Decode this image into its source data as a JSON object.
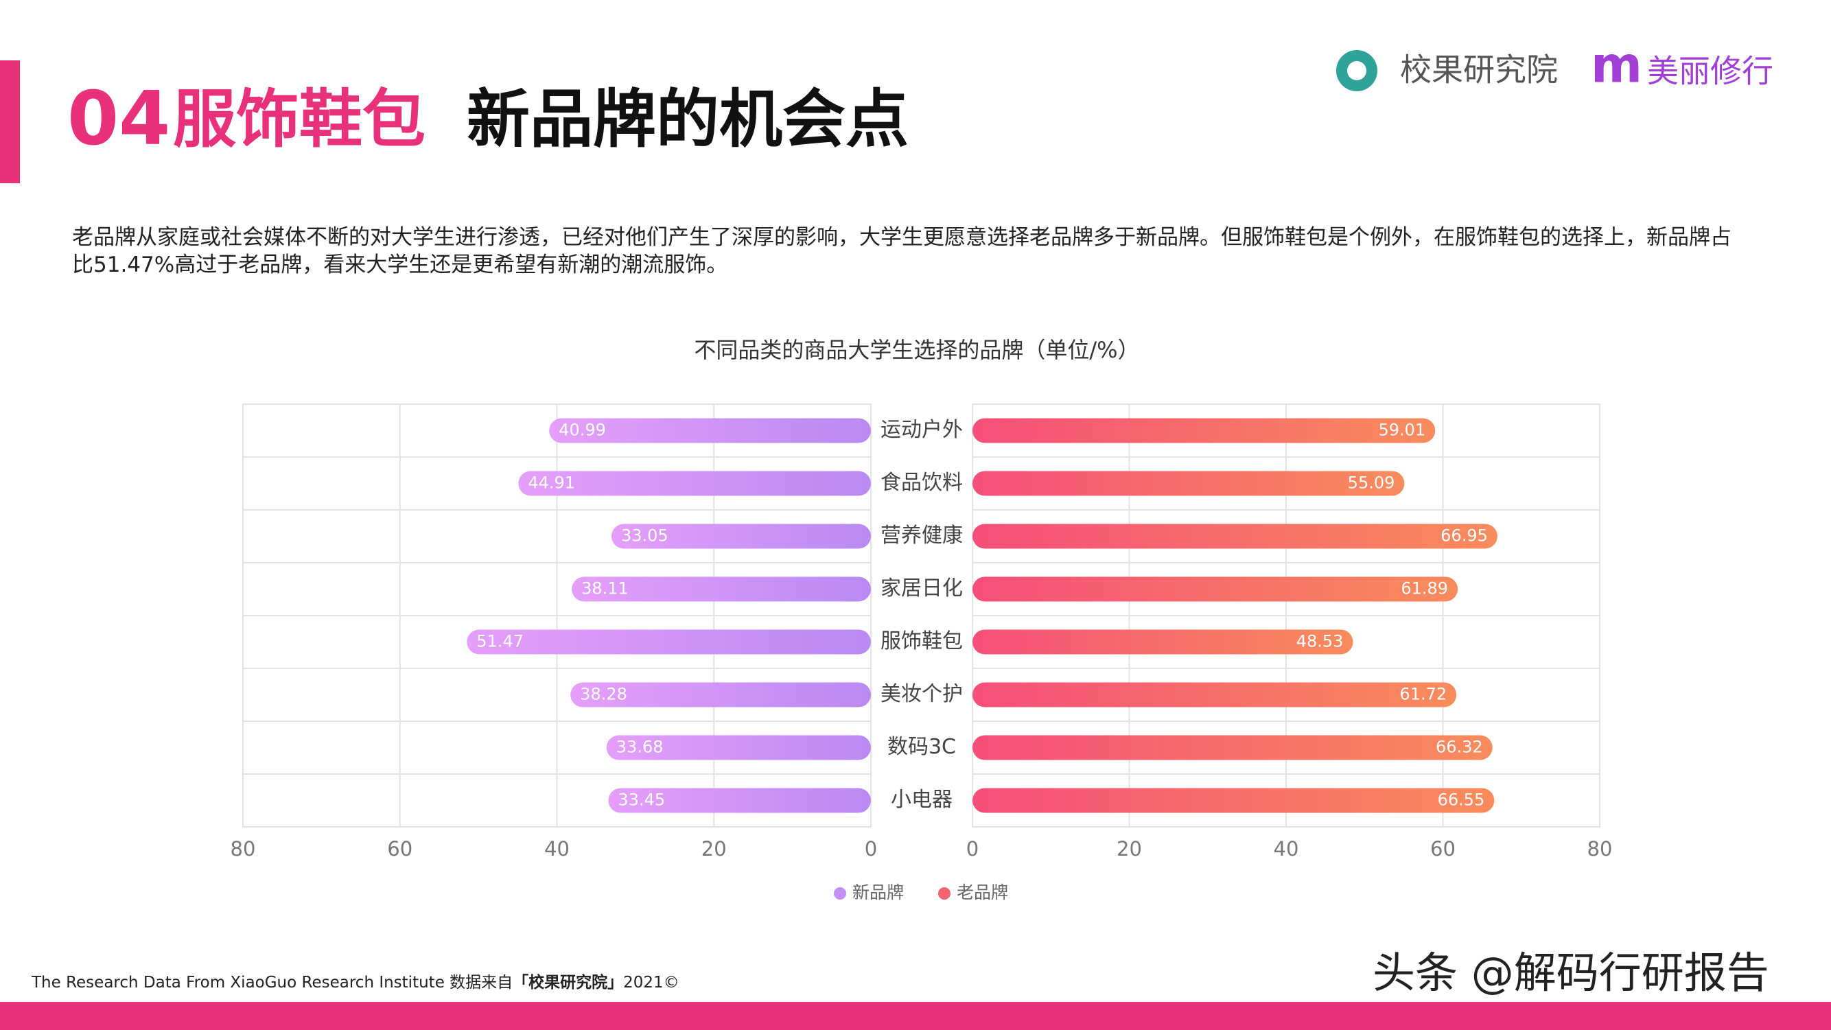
{
  "header": {
    "number": "04",
    "category": "服饰鞋包",
    "title": "新品牌的机会点"
  },
  "logo": {
    "brand": "校果研究院",
    "mark": "m",
    "partner": "美丽修行"
  },
  "paragraph": "老品牌从家庭或社会媒体不断的对大学生进行渗透，已经对他们产生了深厚的影响，大学生更愿意选择老品牌多于新品牌。但服饰鞋包是个例外，在服饰鞋包的选择上，新品牌占比51.47%高过于老品牌，看来大学生还是更希望有新潮的潮流服饰。",
  "chart_data": {
    "type": "butterfly-bar",
    "title": "不同品类的商品大学生选择的品牌（单位/%）",
    "categories": [
      "运动户外",
      "食品饮料",
      "营养健康",
      "家居日化",
      "服饰鞋包",
      "美妆个护",
      "数码3C",
      "小电器"
    ],
    "series": [
      {
        "name": "新品牌",
        "color": "#c58ef5",
        "values": [
          40.99,
          44.91,
          33.05,
          38.11,
          51.47,
          38.28,
          33.68,
          33.45
        ]
      },
      {
        "name": "老品牌",
        "color": "#f7636f",
        "values": [
          59.01,
          55.09,
          66.95,
          61.89,
          48.53,
          61.72,
          66.32,
          66.55
        ]
      }
    ],
    "xlim": [
      0,
      80
    ],
    "xticks": [
      0,
      20,
      40,
      60,
      80
    ],
    "grid": true,
    "legend": "bottom"
  },
  "footer": {
    "prefix": "The Research Data From XiaoGuo Research Institute 数据来自",
    "source": "「校果研究院」",
    "suffix": "2021©"
  },
  "watermark": "头条 @解码行研报告"
}
